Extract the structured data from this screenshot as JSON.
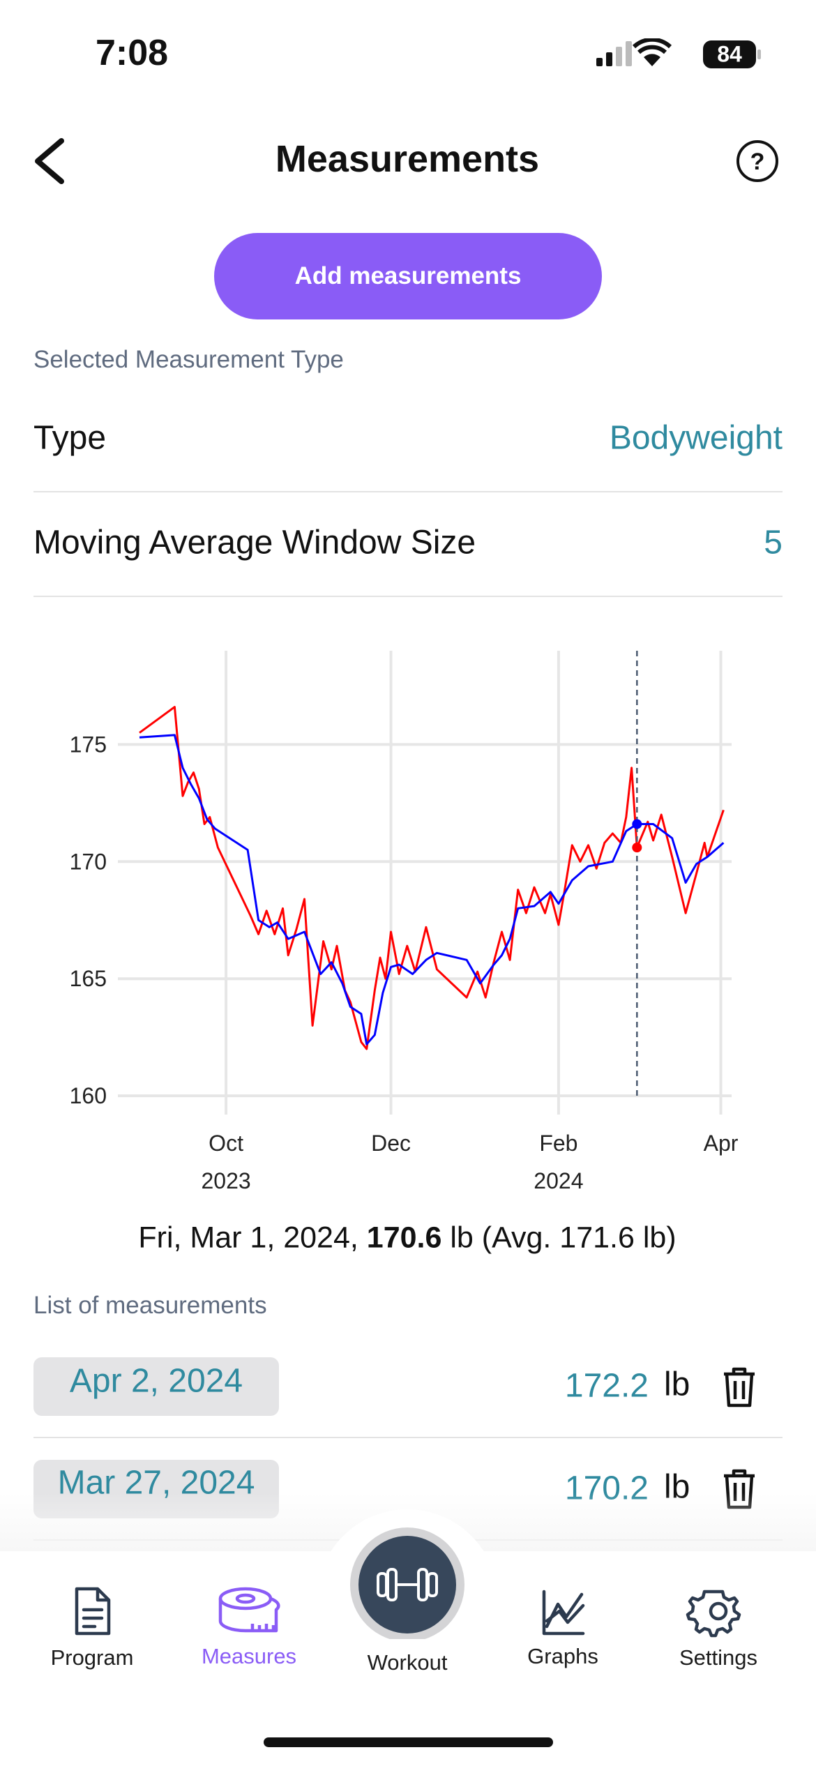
{
  "status": {
    "time": "7:08",
    "battery": "84"
  },
  "header": {
    "title": "Measurements"
  },
  "add_button": "Add measurements",
  "selected_label": "Selected Measurement Type",
  "settings": [
    {
      "label": "Type",
      "value": "Bodyweight"
    },
    {
      "label": "Moving Average Window Size",
      "value": 5
    }
  ],
  "chart_data": {
    "type": "line",
    "xlim": [
      "2023-08-22",
      "2024-04-05"
    ],
    "ylim": [
      159.2,
      179
    ],
    "yticks": [
      160,
      165,
      170,
      175
    ],
    "xticks": [
      {
        "value": "2023-10-01",
        "label": "Oct",
        "sublabel": "2023"
      },
      {
        "value": "2023-12-01",
        "label": "Dec"
      },
      {
        "value": "2024-02-01",
        "label": "Feb",
        "sublabel": "2024"
      },
      {
        "value": "2024-04-01",
        "label": "Apr"
      }
    ],
    "grid": true,
    "selected_x": "2024-03-01",
    "series": [
      {
        "color": "#ff0000",
        "x": [
          "2023-08-30",
          "2023-09-12",
          "2023-09-15",
          "2023-09-17",
          "2023-09-19",
          "2023-09-21",
          "2023-09-23",
          "2023-09-25",
          "2023-09-28",
          "2023-10-10",
          "2023-10-13",
          "2023-10-16",
          "2023-10-19",
          "2023-10-22",
          "2023-10-24",
          "2023-10-27",
          "2023-10-30",
          "2023-11-02",
          "2023-11-06",
          "2023-11-09",
          "2023-11-11",
          "2023-11-14",
          "2023-11-16",
          "2023-11-20",
          "2023-11-22",
          "2023-11-25",
          "2023-11-27",
          "2023-11-29",
          "2023-12-01",
          "2023-12-04",
          "2023-12-07",
          "2023-12-10",
          "2023-12-14",
          "2023-12-18",
          "2023-12-29",
          "2024-01-02",
          "2024-01-05",
          "2024-01-08",
          "2024-01-11",
          "2024-01-14",
          "2024-01-17",
          "2024-01-20",
          "2024-01-23",
          "2024-01-27",
          "2024-01-29",
          "2024-02-01",
          "2024-02-03",
          "2024-02-06",
          "2024-02-09",
          "2024-02-12",
          "2024-02-15",
          "2024-02-18",
          "2024-02-21",
          "2024-02-24",
          "2024-02-26",
          "2024-02-28",
          "2024-03-01",
          "2024-03-05",
          "2024-03-07",
          "2024-03-10",
          "2024-03-14",
          "2024-03-19",
          "2024-03-23",
          "2024-03-26",
          "2024-03-27",
          "2024-04-02"
        ],
        "values": [
          175.5,
          176.6,
          172.8,
          173.4,
          173.8,
          173.1,
          171.6,
          171.9,
          170.6,
          167.7,
          166.9,
          167.9,
          166.9,
          168.0,
          166.0,
          167.1,
          168.4,
          163.0,
          166.6,
          165.4,
          166.4,
          164.5,
          164.0,
          162.3,
          162.0,
          164.5,
          165.9,
          165.0,
          167.0,
          165.2,
          166.4,
          165.3,
          167.2,
          165.4,
          164.2,
          165.3,
          164.2,
          165.7,
          167.0,
          165.8,
          168.8,
          167.8,
          168.9,
          167.8,
          168.6,
          167.3,
          168.6,
          170.7,
          170.0,
          170.7,
          169.7,
          170.8,
          171.2,
          170.8,
          171.9,
          174.0,
          170.6,
          171.7,
          170.9,
          172.0,
          170.2,
          167.8,
          169.5,
          170.8,
          170.2,
          172.2
        ]
      },
      {
        "color": "#0000ff",
        "x": [
          "2023-08-30",
          "2023-09-12",
          "2023-09-15",
          "2023-09-18",
          "2023-09-21",
          "2023-09-24",
          "2023-09-27",
          "2023-10-09",
          "2023-10-13",
          "2023-10-17",
          "2023-10-20",
          "2023-10-24",
          "2023-10-30",
          "2023-11-02",
          "2023-11-05",
          "2023-11-09",
          "2023-11-13",
          "2023-11-16",
          "2023-11-20",
          "2023-11-22",
          "2023-11-25",
          "2023-11-28",
          "2023-12-01",
          "2023-12-04",
          "2023-12-09",
          "2023-12-14",
          "2023-12-18",
          "2023-12-29",
          "2024-01-03",
          "2024-01-08",
          "2024-01-11",
          "2024-01-14",
          "2024-01-17",
          "2024-01-23",
          "2024-01-29",
          "2024-02-01",
          "2024-02-06",
          "2024-02-12",
          "2024-02-21",
          "2024-02-26",
          "2024-03-01",
          "2024-03-07",
          "2024-03-14",
          "2024-03-19",
          "2024-03-23",
          "2024-03-27",
          "2024-04-02"
        ],
        "values": [
          175.3,
          175.4,
          174.0,
          173.3,
          172.7,
          171.8,
          171.4,
          170.5,
          167.5,
          167.2,
          167.4,
          166.7,
          167.0,
          166.1,
          165.2,
          165.7,
          164.8,
          163.8,
          163.5,
          162.2,
          162.6,
          164.4,
          165.5,
          165.6,
          165.2,
          165.8,
          166.1,
          165.8,
          164.8,
          165.6,
          166.0,
          166.7,
          168.0,
          168.1,
          168.7,
          168.2,
          169.2,
          169.8,
          170.0,
          171.3,
          171.6,
          171.6,
          171.0,
          169.1,
          169.9,
          170.2,
          170.8
        ]
      }
    ]
  },
  "caption": {
    "date": "Fri, Mar 1, 2024,",
    "value": 170.6,
    "unit": "lb",
    "average": "(Avg. 171.6 lb)"
  },
  "list": {
    "label": "List of measurements",
    "items": [
      {
        "date": "Apr 2, 2024",
        "value": 172.2,
        "unit": "lb"
      },
      {
        "date": "Mar 27, 2024",
        "value": 170.2,
        "unit": "lb"
      }
    ]
  },
  "nav": [
    {
      "label": "Program"
    },
    {
      "label": "Measures",
      "active": true
    },
    {
      "label": "Workout"
    },
    {
      "label": "Graphs"
    },
    {
      "label": "Settings"
    }
  ]
}
